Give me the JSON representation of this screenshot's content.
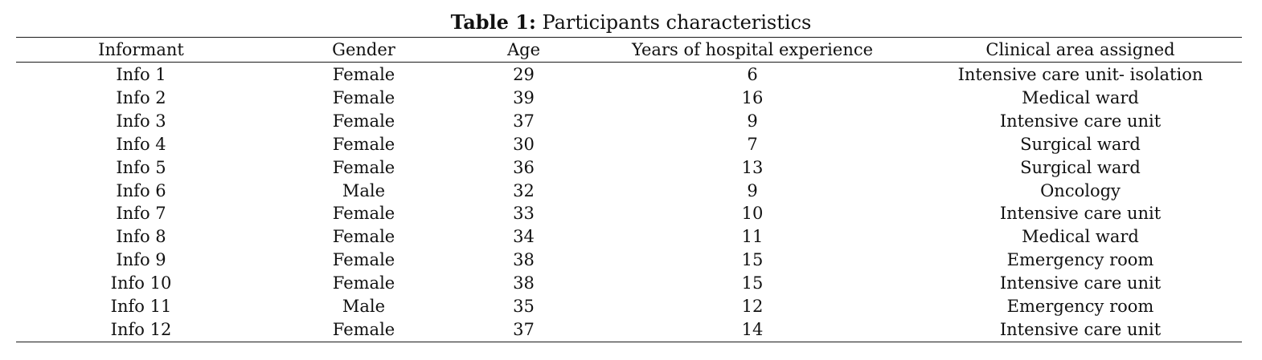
{
  "caption": {
    "label": "Table 1:",
    "text": "Participants characteristics"
  },
  "table": {
    "headers": [
      "Informant",
      "Gender",
      "Age",
      "Years of hospital experience",
      "Clinical area assigned"
    ],
    "rows": [
      [
        "Info 1",
        "Female",
        "29",
        "6",
        "Intensive care unit- isolation"
      ],
      [
        "Info 2",
        "Female",
        "39",
        "16",
        "Medical ward"
      ],
      [
        "Info 3",
        "Female",
        "37",
        "9",
        "Intensive care unit"
      ],
      [
        "Info 4",
        "Female",
        "30",
        "7",
        "Surgical ward"
      ],
      [
        "Info 5",
        "Female",
        "36",
        "13",
        "Surgical ward"
      ],
      [
        "Info 6",
        "Male",
        "32",
        "9",
        "Oncology"
      ],
      [
        "Info 7",
        "Female",
        "33",
        "10",
        "Intensive care unit"
      ],
      [
        "Info 8",
        "Female",
        "34",
        "11",
        "Medical ward"
      ],
      [
        "Info 9",
        "Female",
        "38",
        "15",
        "Emergency room"
      ],
      [
        "Info 10",
        "Female",
        "38",
        "15",
        "Intensive care unit"
      ],
      [
        "Info 11",
        "Male",
        "35",
        "12",
        "Emergency room"
      ],
      [
        "Info 12",
        "Female",
        "37",
        "14",
        "Intensive care unit"
      ]
    ]
  }
}
